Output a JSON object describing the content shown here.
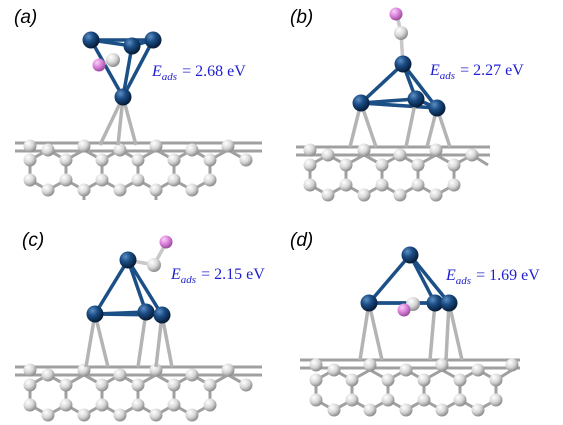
{
  "panels": [
    {
      "label": "(a)",
      "eads_symbol": "E",
      "eads_subscript": "ads",
      "eads_value": "= 2.68 eV"
    },
    {
      "label": "(b)",
      "eads_symbol": "E",
      "eads_subscript": "ads",
      "eads_value": "= 2.27 eV"
    },
    {
      "label": "(c)",
      "eads_symbol": "E",
      "eads_subscript": "ads",
      "eads_value": "= 2.15 eV"
    },
    {
      "label": "(d)",
      "eads_symbol": "E",
      "eads_subscript": "ads",
      "eads_value": "= 1.69 eV"
    }
  ],
  "colors": {
    "metal_atom": "#123f74",
    "carbon_atom": "#d8d8d8",
    "hydrogen_atom": "#de86de",
    "bond_metal": "#1b4f86",
    "bond_lattice": "#a0a0a0",
    "eads_text": "#1f1fcf"
  }
}
